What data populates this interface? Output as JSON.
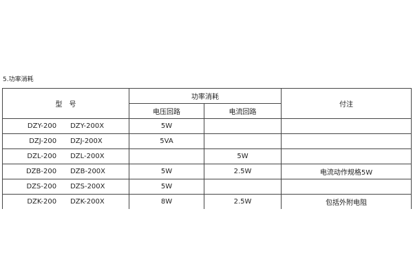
{
  "title": "5.功率消耗",
  "table": {
    "headers": {
      "model": "型　号",
      "power": "功率消耗",
      "voltage": "电压回路",
      "current": "电流回路",
      "note": "付注"
    },
    "rows": [
      {
        "model_a": "DZY-200",
        "model_b": "DZY-200X",
        "voltage": "5W",
        "current": "",
        "note": ""
      },
      {
        "model_a": "DZJ-200",
        "model_b": "DZJ-200X",
        "voltage": "5VA",
        "current": "",
        "note": ""
      },
      {
        "model_a": "DZL-200",
        "model_b": "DZL-200X",
        "voltage": "",
        "current": "5W",
        "note": ""
      },
      {
        "model_a": "DZB-200",
        "model_b": "DZB-200X",
        "voltage": "5W",
        "current": "2.5W",
        "note": "电流动作规格5W"
      },
      {
        "model_a": "DZS-200",
        "model_b": "DZS-200X",
        "voltage": "5W",
        "current": "",
        "note": ""
      },
      {
        "model_a": "DZK-200",
        "model_b": "DZK-200X",
        "voltage": "8W",
        "current": "2.5W",
        "note": "包括外附电阻"
      }
    ]
  }
}
